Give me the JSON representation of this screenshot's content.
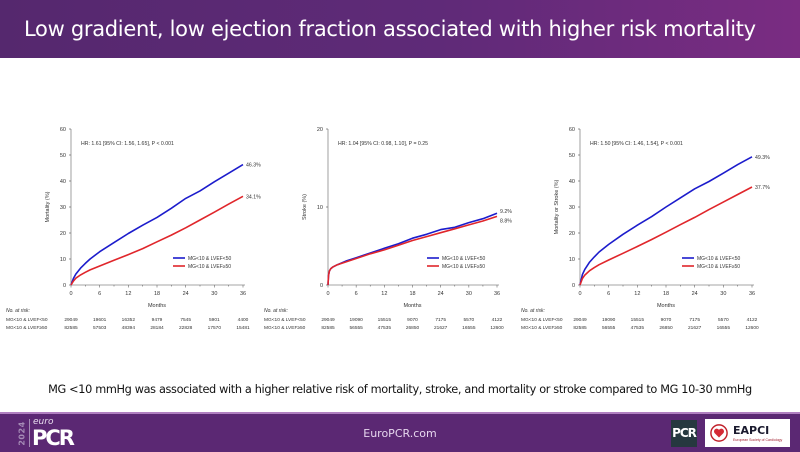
{
  "header": {
    "title": "Low gradient, low ejection fraction associated with higher risk mortality"
  },
  "conclusion": "MG <10 mmHg was associated with a higher relative risk of mortality, stroke, and mortality or stroke compared to MG 10-30 mmHg",
  "footer": {
    "site": "EuroPCR.com",
    "logo_year": "2024",
    "logo_euro": "euro",
    "logo_pcr": "PCR",
    "pcr_badge": "PCR",
    "eapci_name": "EAPCI",
    "eapci_sub": "European Society of Cardiology"
  },
  "colors": {
    "series1": "#1c1ccc",
    "series2": "#e0262b",
    "header": "#5f2a78",
    "footer": "#5b2873"
  },
  "chart_data": [
    {
      "type": "line",
      "id": "mortality",
      "title": "",
      "xlabel": "Months",
      "ylabel": "Mortality (%)",
      "xlim": [
        0,
        36
      ],
      "ylim": [
        0,
        60
      ],
      "xticks": [
        0,
        6,
        12,
        18,
        24,
        30,
        36
      ],
      "yticks": [
        0,
        10,
        20,
        30,
        40,
        50,
        60
      ],
      "annotation": "HR: 1.61 [95% CI: 1.56, 1.65], P < 0.001",
      "legend_position": "lower-right",
      "series": [
        {
          "name": "MG<10 & LVEF<50",
          "color": "#1c1ccc",
          "end_label": "46.3%",
          "x": [
            0,
            0.5,
            1,
            2,
            3,
            4,
            6,
            9,
            12,
            15,
            18,
            21,
            24,
            27,
            30,
            33,
            36
          ],
          "y": [
            0,
            2.5,
            4.2,
            6.5,
            8.3,
            10.0,
            12.8,
            16.3,
            19.8,
            23.0,
            26.0,
            29.5,
            33.3,
            36.2,
            39.7,
            43.0,
            46.3
          ]
        },
        {
          "name": "MG<10 & LVEF≥50",
          "color": "#e0262b",
          "end_label": "34.1%",
          "x": [
            0,
            0.5,
            1,
            2,
            3,
            4,
            6,
            9,
            12,
            15,
            18,
            21,
            24,
            27,
            30,
            33,
            36
          ],
          "y": [
            0,
            1.5,
            2.6,
            3.9,
            4.9,
            5.8,
            7.3,
            9.5,
            11.7,
            14.0,
            16.6,
            19.2,
            22.0,
            25.0,
            28.0,
            31.1,
            34.1
          ]
        }
      ],
      "risk_table": {
        "header": "No. at risk:",
        "rows": [
          {
            "label": "MG<10 & LVEF<50",
            "values": [
              "29049",
              "19601",
              "16352",
              "9479",
              "7545",
              "5901",
              "4400"
            ]
          },
          {
            "label": "MG<10 & LVEF≥50",
            "values": [
              "82585",
              "57503",
              "48394",
              "28184",
              "22828",
              "17570",
              "15481"
            ]
          }
        ]
      }
    },
    {
      "type": "line",
      "id": "stroke",
      "title": "",
      "xlabel": "Months",
      "ylabel": "Stroke (%)",
      "xlim": [
        0,
        36
      ],
      "ylim": [
        0,
        20
      ],
      "xticks": [
        0,
        6,
        12,
        18,
        24,
        30,
        36
      ],
      "yticks": [
        0,
        10,
        20
      ],
      "annotation": "HR: 1.04 [95% CI: 0.98, 1.10], P = 0.25",
      "legend_position": "lower-right",
      "series": [
        {
          "name": "MG<10 & LVEF<50",
          "color": "#1c1ccc",
          "end_label": "9.2%",
          "x": [
            0,
            0.1,
            0.3,
            0.6,
            1,
            2,
            4,
            6,
            9,
            12,
            15,
            18,
            21,
            24,
            27,
            30,
            33,
            36
          ],
          "y": [
            0,
            1.2,
            1.8,
            2.1,
            2.3,
            2.6,
            3.1,
            3.5,
            4.1,
            4.7,
            5.3,
            6.0,
            6.5,
            7.1,
            7.4,
            8.0,
            8.5,
            9.2
          ]
        },
        {
          "name": "MG<10 & LVEF≥50",
          "color": "#e0262b",
          "end_label": "8.8%",
          "x": [
            0,
            0.1,
            0.3,
            0.6,
            1,
            2,
            4,
            6,
            9,
            12,
            15,
            18,
            21,
            24,
            27,
            30,
            33,
            36
          ],
          "y": [
            0,
            1.2,
            1.8,
            2.1,
            2.3,
            2.6,
            3.0,
            3.4,
            4.0,
            4.5,
            5.1,
            5.7,
            6.2,
            6.7,
            7.2,
            7.7,
            8.2,
            8.8
          ]
        }
      ],
      "risk_table": {
        "header": "No. at risk:",
        "rows": [
          {
            "label": "MG<10 & LVEF<50",
            "values": [
              "29049",
              "19090",
              "15515",
              "9070",
              "7175",
              "5570",
              "4122"
            ]
          },
          {
            "label": "MG<10 & LVEF≥50",
            "values": [
              "82585",
              "56555",
              "47535",
              "26850",
              "21627",
              "16555",
              "12600"
            ]
          }
        ]
      }
    },
    {
      "type": "line",
      "id": "mortality-or-stroke",
      "title": "",
      "xlabel": "Months",
      "ylabel": "Mortality or Stroke (%)",
      "xlim": [
        0,
        36
      ],
      "ylim": [
        0,
        60
      ],
      "xticks": [
        0,
        6,
        12,
        18,
        24,
        30,
        36
      ],
      "yticks": [
        0,
        10,
        20,
        30,
        40,
        50,
        60
      ],
      "annotation": "HR: 1.50 [95% CI: 1.46, 1.54], P < 0.001",
      "legend_position": "lower-right",
      "series": [
        {
          "name": "MG<10 & LVEF<50",
          "color": "#1c1ccc",
          "end_label": "49.3%",
          "x": [
            0,
            0.5,
            1,
            2,
            3,
            4,
            6,
            9,
            12,
            15,
            18,
            21,
            24,
            27,
            30,
            33,
            36
          ],
          "y": [
            0,
            4.0,
            6.0,
            8.8,
            10.8,
            12.7,
            15.6,
            19.5,
            23.0,
            26.3,
            30.0,
            33.5,
            37.0,
            39.8,
            43.0,
            46.3,
            49.3
          ]
        },
        {
          "name": "MG<10 & LVEF≥50",
          "color": "#e0262b",
          "end_label": "37.7%",
          "x": [
            0,
            0.5,
            1,
            2,
            3,
            4,
            6,
            9,
            12,
            15,
            18,
            21,
            24,
            27,
            30,
            33,
            36
          ],
          "y": [
            0,
            2.5,
            3.8,
            5.5,
            6.7,
            7.8,
            9.6,
            12.2,
            14.8,
            17.5,
            20.3,
            23.2,
            26.0,
            29.0,
            31.9,
            34.8,
            37.7
          ]
        }
      ],
      "risk_table": {
        "header": "No. at risk:",
        "rows": [
          {
            "label": "MG<10 & LVEF<50",
            "values": [
              "29049",
              "19090",
              "15515",
              "9070",
              "7175",
              "5570",
              "4122"
            ]
          },
          {
            "label": "MG<10 & LVEF≥50",
            "values": [
              "82585",
              "56555",
              "47535",
              "26850",
              "21627",
              "16555",
              "12600"
            ]
          }
        ]
      }
    }
  ]
}
